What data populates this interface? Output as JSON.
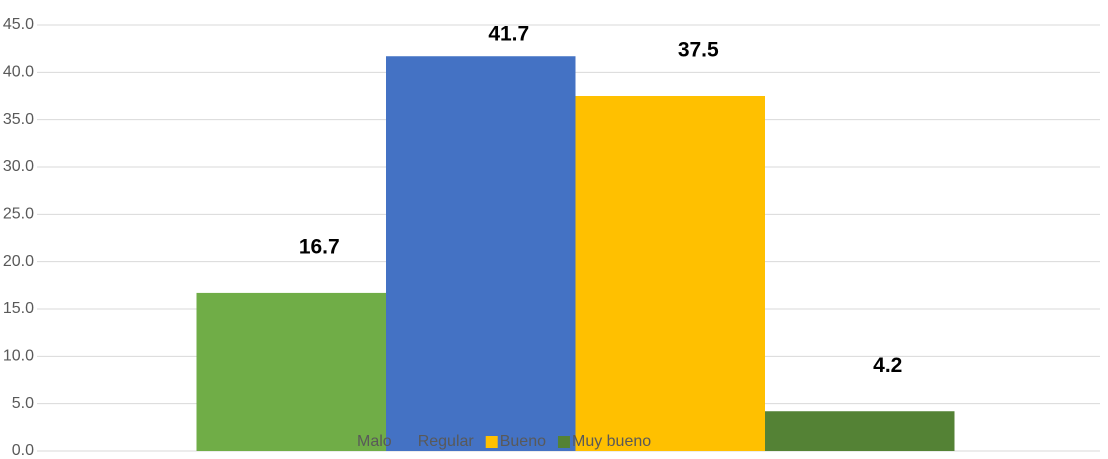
{
  "chart_data": {
    "type": "bar",
    "categories": [
      ""
    ],
    "series": [
      {
        "name": "Malo",
        "color": "#70ad47",
        "values": [
          16.7
        ]
      },
      {
        "name": "Regular",
        "color": "#4472c4",
        "values": [
          41.7
        ]
      },
      {
        "name": "Bueno",
        "color": "#ffc000",
        "values": [
          37.5
        ]
      },
      {
        "name": "Muy bueno",
        "color": "#548235",
        "values": [
          4.2
        ]
      }
    ],
    "ylim": [
      0,
      45
    ],
    "yticks": [
      {
        "value": 0,
        "label": "0.0"
      },
      {
        "value": 5,
        "label": "5.0"
      },
      {
        "value": 10,
        "label": "10.0"
      },
      {
        "value": 15,
        "label": "15.0"
      },
      {
        "value": 20,
        "label": "20.0"
      },
      {
        "value": 25,
        "label": "25.0"
      },
      {
        "value": 30,
        "label": "30.0"
      },
      {
        "value": 35,
        "label": "35.0"
      },
      {
        "value": 40,
        "label": "40.0"
      },
      {
        "value": 45,
        "label": "45.0"
      }
    ],
    "grid": true,
    "legend": "bottom"
  }
}
